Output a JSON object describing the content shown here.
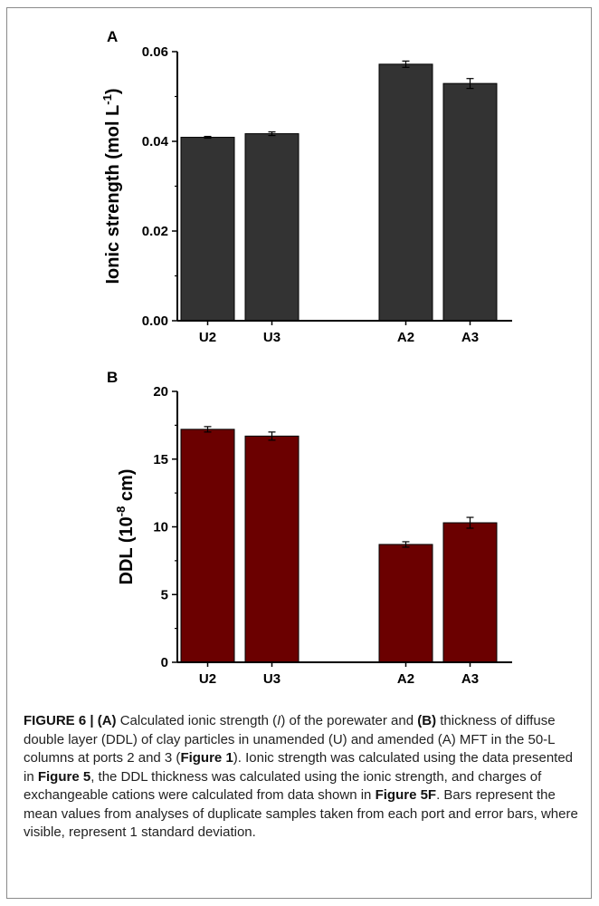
{
  "chart_data": [
    {
      "type": "bar",
      "panel": "A",
      "categories": [
        "U2",
        "U3",
        "A2",
        "A3"
      ],
      "values": [
        0.0409,
        0.0417,
        0.0572,
        0.0529
      ],
      "errors": [
        0.0002,
        0.0004,
        0.0007,
        0.0011
      ],
      "ylabel": "Ionic strength (mol L-1)",
      "ylabel_parts": {
        "base": "Ionic strength (mol L",
        "sup": "-1",
        "end": ")"
      },
      "ylim": [
        0,
        0.06
      ],
      "yticks": [
        "0.00",
        "0.02",
        "0.04",
        "0.06"
      ],
      "bar_color": "#333333",
      "grid": false
    },
    {
      "type": "bar",
      "panel": "B",
      "categories": [
        "U2",
        "U3",
        "A2",
        "A3"
      ],
      "values": [
        17.2,
        16.7,
        8.7,
        10.3
      ],
      "errors": [
        0.2,
        0.3,
        0.2,
        0.4
      ],
      "ylabel": "DDL (10-8 cm)",
      "ylabel_parts": {
        "base": "DDL (10",
        "sup": "-8",
        "end": " cm)"
      },
      "ylim": [
        0,
        20
      ],
      "yticks": [
        "0",
        "5",
        "10",
        "15",
        "20"
      ],
      "bar_color": "#6b0000",
      "grid": false
    }
  ],
  "caption": {
    "label": "FIGURE 6 | ",
    "a": "(A)",
    "t1": " Calculated ionic strength (",
    "i": "I",
    "t2": ") of the porewater and ",
    "b": "(B)",
    "t3": " thickness of diffuse double layer (DDL) of clay particles in unamended (U) and amended (A) MFT in the 50-L columns at ports 2 and 3 (",
    "fig1": "Figure 1",
    "t4": "). Ionic strength was calculated using the data presented in ",
    "fig5": "Figure 5",
    "t5": ", the DDL thickness was calculated using the ionic strength, and charges of exchangeable cations were calculated from data shown in ",
    "fig5f": "Figure 5F",
    "t6": ". Bars represent the mean values from analyses of duplicate samples taken from each port and error bars, where visible, represent 1 standard deviation."
  }
}
